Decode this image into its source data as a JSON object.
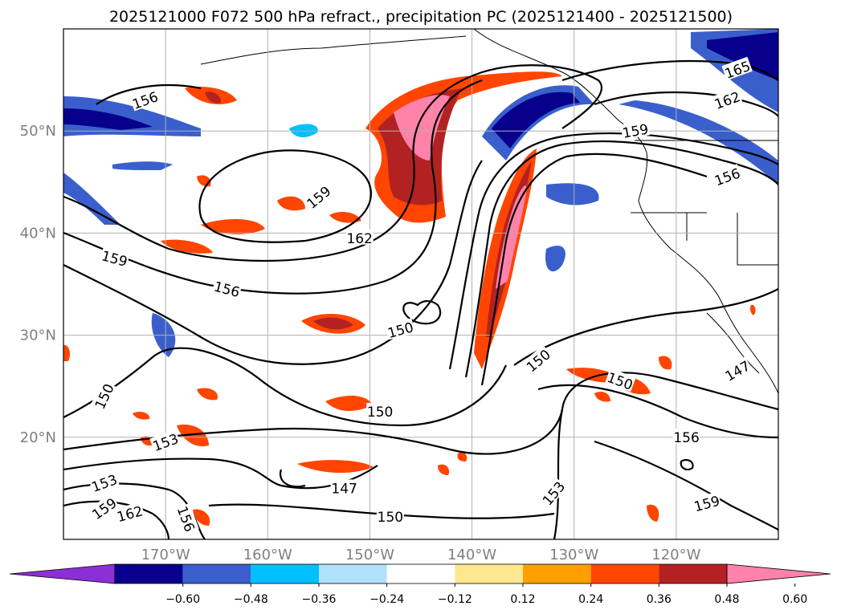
{
  "title": "2025121000 F072 500 hPa refract., precipitation PC (2025121400 - 2025121500)",
  "chart_data": {
    "type": "contour-map",
    "title": "2025121000 F072 500 hPa refract., precipitation PC (2025121400 - 2025121500)",
    "lon_range": [
      -180,
      -110
    ],
    "lat_range": [
      10,
      60
    ],
    "lon_ticks": [
      {
        "value": -170,
        "label": "170°W"
      },
      {
        "value": -160,
        "label": "160°W"
      },
      {
        "value": -150,
        "label": "150°W"
      },
      {
        "value": -140,
        "label": "140°W"
      },
      {
        "value": -130,
        "label": "130°W"
      },
      {
        "value": -120,
        "label": "120°W"
      }
    ],
    "lat_ticks": [
      {
        "value": 20,
        "label": "20°N"
      },
      {
        "value": 30,
        "label": "30°N"
      },
      {
        "value": 40,
        "label": "40°N"
      },
      {
        "value": 50,
        "label": "50°N"
      }
    ],
    "contour_labels": [
      {
        "text": "156",
        "lon": -172,
        "lat": 53,
        "rot": -20
      },
      {
        "text": "159",
        "lon": -155,
        "lat": 43.5,
        "rot": -40
      },
      {
        "text": "162",
        "lon": -151,
        "lat": 39.5,
        "rot": 0
      },
      {
        "text": "159",
        "lon": -175,
        "lat": 37.5,
        "rot": 15
      },
      {
        "text": "156",
        "lon": -164,
        "lat": 34.5,
        "rot": 15
      },
      {
        "text": "150",
        "lon": -147,
        "lat": 30.5,
        "rot": -15
      },
      {
        "text": "150",
        "lon": -133.5,
        "lat": 27.5,
        "rot": -40
      },
      {
        "text": "150",
        "lon": -176,
        "lat": 24,
        "rot": -65
      },
      {
        "text": "150",
        "lon": -149,
        "lat": 22.5,
        "rot": 0
      },
      {
        "text": "153",
        "lon": -170,
        "lat": 19.5,
        "rot": -20
      },
      {
        "text": "153",
        "lon": -176,
        "lat": 15.5,
        "rot": -20
      },
      {
        "text": "159",
        "lon": -176,
        "lat": 13,
        "rot": -35
      },
      {
        "text": "162",
        "lon": -173.5,
        "lat": 12.5,
        "rot": -15
      },
      {
        "text": "156",
        "lon": -168,
        "lat": 12,
        "rot": 70
      },
      {
        "text": "147",
        "lon": -152.5,
        "lat": 15,
        "rot": 0
      },
      {
        "text": "150",
        "lon": -148,
        "lat": 12.2,
        "rot": 0
      },
      {
        "text": "153",
        "lon": -132,
        "lat": 14.5,
        "rot": -50
      },
      {
        "text": "150",
        "lon": -125.5,
        "lat": 25.5,
        "rot": 20
      },
      {
        "text": "156",
        "lon": -119,
        "lat": 20,
        "rot": 0
      },
      {
        "text": "159",
        "lon": -117,
        "lat": 13.5,
        "rot": -15
      },
      {
        "text": "147",
        "lon": -114,
        "lat": 26.5,
        "rot": -30
      },
      {
        "text": "165",
        "lon": -114,
        "lat": 56,
        "rot": -20
      },
      {
        "text": "162",
        "lon": -115,
        "lat": 53,
        "rot": -20
      },
      {
        "text": "159",
        "lon": -124,
        "lat": 50,
        "rot": -10
      },
      {
        "text": "156",
        "lon": -115,
        "lat": 45.5,
        "rot": -20
      }
    ],
    "colorbar": {
      "levels": [
        -0.6,
        -0.48,
        -0.36,
        -0.24,
        -0.12,
        0.12,
        0.24,
        0.36,
        0.48,
        0.6
      ],
      "tick_labels": [
        "−0.60",
        "−0.48",
        "−0.36",
        "−0.24",
        "−0.12",
        "0.12",
        "0.24",
        "0.36",
        "0.48",
        "0.60"
      ],
      "colors": [
        "#8b2fd6",
        "#06008c",
        "#3a5fcd",
        "#00bfff",
        "#b0e0fa",
        "#ffffff",
        "#ffe78f",
        "#ffa000",
        "#ff4500",
        "#b22222",
        "#ff82ab"
      ],
      "extend": "both"
    }
  }
}
